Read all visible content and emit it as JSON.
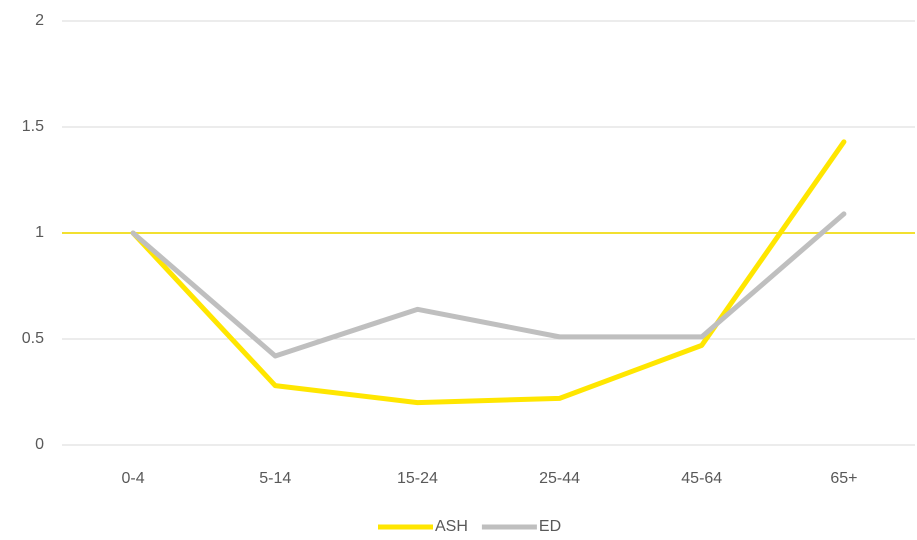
{
  "chart_data": {
    "type": "line",
    "categories": [
      "0-4",
      "5-14",
      "15-24",
      "25-44",
      "45-64",
      "65+"
    ],
    "series": [
      {
        "name": "ASH",
        "color": "#ffe600",
        "values": [
          1.0,
          0.28,
          0.2,
          0.22,
          0.47,
          1.43
        ]
      },
      {
        "name": "ED",
        "color": "#bfbfbf",
        "values": [
          1.0,
          0.42,
          0.64,
          0.51,
          0.51,
          1.09
        ]
      }
    ],
    "ylim": [
      0,
      2
    ],
    "yticks": [
      0,
      0.5,
      1,
      1.5,
      2
    ],
    "grid": true,
    "reference_line": {
      "value": 1,
      "color": "#f2e030"
    },
    "legend": "bottom"
  }
}
